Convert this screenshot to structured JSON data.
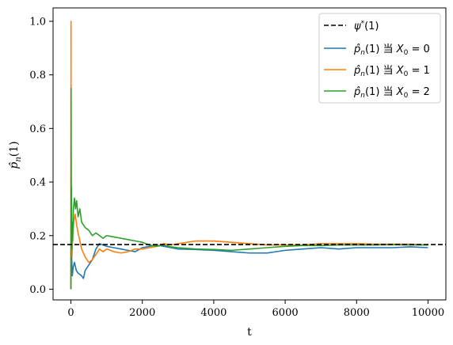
{
  "chart_data": {
    "type": "line",
    "xlabel": "t",
    "ylabel": "p̂ₙ(1)",
    "xlim": [
      -500,
      10500
    ],
    "ylim": [
      -0.04,
      1.05
    ],
    "x_ticks": [
      0,
      2000,
      4000,
      6000,
      8000,
      10000
    ],
    "x_tick_labels": [
      "0",
      "2000",
      "4000",
      "6000",
      "8000",
      "10000"
    ],
    "y_ticks": [
      0.0,
      0.2,
      0.4,
      0.6,
      0.8,
      1.0
    ],
    "y_tick_labels": [
      "0.0",
      "0.2",
      "0.4",
      "0.6",
      "0.8",
      "1.0"
    ],
    "grid": false,
    "legend_position": "top-right",
    "reference_line": {
      "name": "ψ*(1)",
      "value": 0.1667,
      "style": "dashed",
      "color": "#000000"
    },
    "series": [
      {
        "name": "p̂ₙ(1) 当 X₀ = 0",
        "color": "#1f77b4",
        "x": [
          0,
          10,
          20,
          40,
          60,
          100,
          150,
          200,
          300,
          350,
          400,
          500,
          600,
          700,
          800,
          900,
          1000,
          1200,
          1400,
          1600,
          1800,
          2000,
          2200,
          2400,
          2600,
          2800,
          3000,
          3500,
          4000,
          4500,
          5000,
          5500,
          6000,
          6500,
          7000,
          7500,
          8000,
          8500,
          9000,
          9500,
          10000
        ],
        "y": [
          0.0,
          0.22,
          0.12,
          0.05,
          0.08,
          0.1,
          0.07,
          0.06,
          0.05,
          0.04,
          0.07,
          0.09,
          0.11,
          0.15,
          0.17,
          0.165,
          0.16,
          0.155,
          0.15,
          0.145,
          0.14,
          0.155,
          0.16,
          0.165,
          0.16,
          0.155,
          0.15,
          0.148,
          0.145,
          0.14,
          0.135,
          0.135,
          0.145,
          0.15,
          0.155,
          0.15,
          0.155,
          0.155,
          0.155,
          0.158,
          0.155
        ]
      },
      {
        "name": "p̂ₙ(1) 当 X₀ = 1",
        "color": "#ff7f0e",
        "x": [
          0,
          3,
          6,
          10,
          20,
          30,
          50,
          80,
          120,
          160,
          200,
          250,
          300,
          400,
          500,
          600,
          700,
          800,
          900,
          1000,
          1200,
          1400,
          1600,
          1800,
          2000,
          2200,
          2400,
          2600,
          2800,
          3000,
          3500,
          4000,
          4500,
          5000,
          5500,
          6000,
          6500,
          7000,
          7500,
          8000,
          8500,
          9000,
          9500,
          10000
        ],
        "y": [
          0.0,
          1.0,
          0.5,
          0.3,
          0.15,
          0.12,
          0.2,
          0.25,
          0.28,
          0.24,
          0.21,
          0.18,
          0.15,
          0.12,
          0.1,
          0.11,
          0.13,
          0.15,
          0.14,
          0.15,
          0.14,
          0.135,
          0.14,
          0.15,
          0.15,
          0.155,
          0.16,
          0.17,
          0.165,
          0.17,
          0.18,
          0.18,
          0.175,
          0.17,
          0.165,
          0.165,
          0.165,
          0.17,
          0.17,
          0.17,
          0.168,
          0.168,
          0.168,
          0.165
        ]
      },
      {
        "name": "p̂ₙ(1) 当 X₀ = 2",
        "color": "#2ca02c",
        "x": [
          0,
          5,
          10,
          15,
          25,
          35,
          50,
          70,
          100,
          130,
          160,
          200,
          250,
          300,
          400,
          500,
          600,
          700,
          800,
          900,
          1000,
          1200,
          1400,
          1600,
          1800,
          2000,
          2200,
          2400,
          2600,
          2800,
          3000,
          3500,
          4000,
          4500,
          5000,
          5500,
          6000,
          6500,
          7000,
          7500,
          8000,
          8500,
          9000,
          9500,
          10000
        ],
        "y": [
          0.0,
          0.75,
          0.2,
          0.38,
          0.15,
          0.25,
          0.18,
          0.3,
          0.34,
          0.3,
          0.33,
          0.27,
          0.3,
          0.25,
          0.23,
          0.22,
          0.2,
          0.21,
          0.2,
          0.19,
          0.2,
          0.195,
          0.19,
          0.185,
          0.18,
          0.175,
          0.165,
          0.16,
          0.165,
          0.158,
          0.155,
          0.15,
          0.148,
          0.145,
          0.15,
          0.155,
          0.16,
          0.163,
          0.163,
          0.165,
          0.165,
          0.165,
          0.166,
          0.165,
          0.165
        ]
      }
    ]
  }
}
